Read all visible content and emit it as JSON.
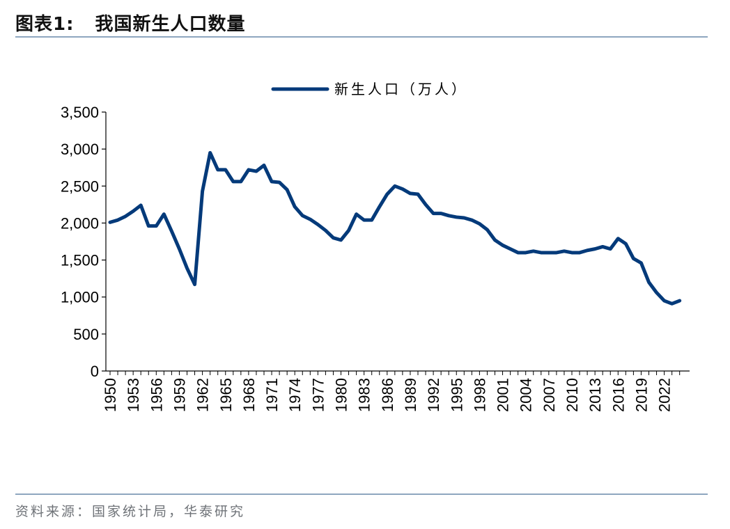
{
  "header": {
    "figure_label": "图表1:",
    "title": "我国新生人口数量"
  },
  "footer": {
    "source": "资料来源：国家统计局，华泰研究"
  },
  "colors": {
    "series": "#043a7a",
    "rule": "#8ea6bf",
    "axis": "#000000"
  },
  "chart_data": {
    "type": "line",
    "title": "我国新生人口数量",
    "xlabel": "",
    "ylabel": "",
    "ylim": [
      0,
      3500
    ],
    "yticks": [
      0,
      500,
      1000,
      1500,
      2000,
      2500,
      3000,
      3500
    ],
    "ytick_labels": [
      "0",
      "500",
      "1,000",
      "1,500",
      "2,000",
      "2,500",
      "3,000",
      "3,500"
    ],
    "xtick_labels": [
      "1950",
      "1953",
      "1956",
      "1959",
      "1962",
      "1965",
      "1968",
      "1971",
      "1974",
      "1977",
      "1980",
      "1983",
      "1986",
      "1989",
      "1992",
      "1995",
      "1998",
      "2001",
      "2004",
      "2007",
      "2010",
      "2013",
      "2016",
      "2019",
      "2022"
    ],
    "legend": {
      "position": "top",
      "entries": [
        "新生人口（万人）"
      ]
    },
    "grid": false,
    "x": [
      1950,
      1951,
      1952,
      1953,
      1954,
      1955,
      1956,
      1957,
      1958,
      1959,
      1960,
      1961,
      1962,
      1963,
      1964,
      1965,
      1966,
      1967,
      1968,
      1969,
      1970,
      1971,
      1972,
      1973,
      1974,
      1975,
      1976,
      1977,
      1978,
      1979,
      1980,
      1981,
      1982,
      1983,
      1984,
      1985,
      1986,
      1987,
      1988,
      1989,
      1990,
      1991,
      1992,
      1993,
      1994,
      1995,
      1996,
      1997,
      1998,
      1999,
      2000,
      2001,
      2002,
      2003,
      2004,
      2005,
      2006,
      2007,
      2008,
      2009,
      2010,
      2011,
      2012,
      2013,
      2014,
      2015,
      2016,
      2017,
      2018,
      2019,
      2020,
      2021,
      2022,
      2023
    ],
    "series": [
      {
        "name": "新生人口（万人）",
        "values": [
          2010,
          2040,
          2090,
          2160,
          2240,
          1960,
          1960,
          2120,
          1890,
          1650,
          1390,
          1170,
          2430,
          2950,
          2720,
          2720,
          2560,
          2560,
          2720,
          2700,
          2780,
          2560,
          2550,
          2450,
          2220,
          2100,
          2050,
          1980,
          1900,
          1800,
          1770,
          1900,
          2120,
          2040,
          2040,
          2220,
          2390,
          2500,
          2460,
          2400,
          2390,
          2250,
          2130,
          2130,
          2100,
          2080,
          2070,
          2040,
          1990,
          1910,
          1770,
          1700,
          1650,
          1600,
          1600,
          1620,
          1600,
          1600,
          1600,
          1620,
          1600,
          1600,
          1630,
          1650,
          1680,
          1650,
          1790,
          1720,
          1520,
          1460,
          1200,
          1060,
          950,
          910
        ]
      }
    ],
    "extra_points_years": [
      2024
    ],
    "extra_points_values": [
      950
    ]
  }
}
